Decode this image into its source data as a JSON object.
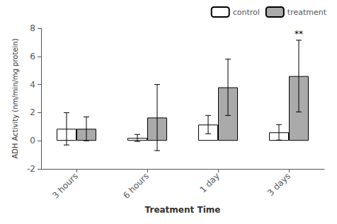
{
  "chart_data": {
    "type": "bar",
    "xlabel": "Treatment Time",
    "ylabel": "ADH Activity (nm/min/mg protein)",
    "categories": [
      "3 hours",
      "6 hours",
      "1 day",
      "3 days"
    ],
    "series": [
      {
        "name": "control",
        "color": "#ffffff",
        "values": [
          0.85,
          0.2,
          1.15,
          0.6
        ],
        "errors": [
          1.15,
          0.25,
          0.65,
          0.55
        ]
      },
      {
        "name": "treatment",
        "color": "#aaaaaa",
        "values": [
          0.85,
          1.65,
          3.8,
          4.6
        ],
        "errors": [
          0.85,
          2.35,
          2.0,
          2.55
        ]
      }
    ],
    "ylim": [
      -2,
      8
    ],
    "yticks": [
      -2,
      0,
      2,
      4,
      6,
      8
    ],
    "grid": false,
    "legend": "upper right",
    "annotations": [
      {
        "text": "**",
        "category": "3 days",
        "series": "treatment"
      }
    ]
  }
}
